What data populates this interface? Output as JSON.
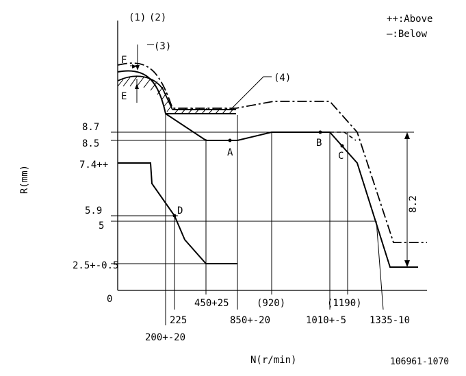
{
  "legend": {
    "above": "++:Above",
    "below": "—:Below"
  },
  "callouts": {
    "c1": "(1)",
    "c2": "(2)",
    "c3": "(3)",
    "c4": "(4)",
    "F": "F",
    "E": "E"
  },
  "axis": {
    "ylabel": "R(mm)",
    "xlabel": "N(r/min)",
    "origin": "0"
  },
  "y_ticks": {
    "t87": "8.7",
    "t85": "8.5",
    "t74": "7.4++",
    "t59": "5.9",
    "t5": "5",
    "t25": "2.5+-0.5"
  },
  "x_ticks": {
    "t200": "200+-20",
    "t225": "225",
    "t450": "450+25",
    "t850": "850+-20",
    "t920": "(920)",
    "t1010": "1010+-5",
    "t1190": "(1190)",
    "t1335": "1335-10"
  },
  "points": {
    "A": "A",
    "B": "B",
    "C": "C",
    "D": "D"
  },
  "dimension": "8.2",
  "part_number": "106961-1070"
}
